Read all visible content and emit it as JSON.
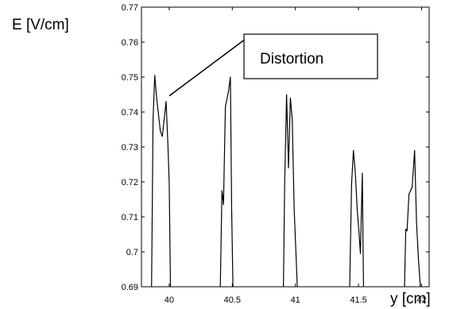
{
  "chart_data": {
    "type": "line",
    "title": "",
    "xlabel": "y [cm]",
    "ylabel": "E [V/cm]",
    "xlim": [
      39.78,
      42.06
    ],
    "ylim": [
      0.69,
      0.77
    ],
    "xticks": [
      40,
      40.5,
      41,
      41.5,
      42
    ],
    "xtick_labels": [
      "40",
      "40.5",
      "41",
      "41.5",
      "42"
    ],
    "yticks": [
      0.69,
      0.7,
      0.71,
      0.72,
      0.73,
      0.74,
      0.75,
      0.76,
      0.77
    ],
    "ytick_labels": [
      "0.69",
      "0.7",
      "0.71",
      "0.72",
      "0.73",
      "0.74",
      "0.75",
      "0.76",
      "0.77"
    ],
    "grid": false,
    "legend": "none",
    "line_color": "#000000",
    "series": [
      {
        "segments": [
          {
            "x": [
              39.86,
              39.872,
              39.885,
              39.9,
              39.93,
              39.945,
              39.975,
              39.99,
              40.0,
              40.01
            ],
            "y": [
              0.69,
              0.738,
              0.7505,
              0.744,
              0.7345,
              0.733,
              0.743,
              0.7305,
              0.72,
              0.69
            ]
          },
          {
            "x": [
              40.405,
              40.418,
              40.43,
              40.445,
              40.47,
              40.485,
              40.495,
              40.505
            ],
            "y": [
              0.69,
              0.7175,
              0.7135,
              0.7415,
              0.746,
              0.75,
              0.712,
              0.69
            ]
          },
          {
            "x": [
              40.905,
              40.915,
              40.93,
              40.945,
              40.96,
              40.975,
              40.99,
              41.005,
              41.015
            ],
            "y": [
              0.69,
              0.7195,
              0.745,
              0.724,
              0.744,
              0.738,
              0.7125,
              0.699,
              0.69
            ]
          },
          {
            "x": [
              41.43,
              41.445,
              41.46,
              41.475,
              41.49,
              41.505,
              41.515,
              41.53,
              41.54
            ],
            "y": [
              0.69,
              0.7195,
              0.729,
              0.7225,
              0.712,
              0.705,
              0.6995,
              0.7225,
              0.69
            ]
          },
          {
            "x": [
              41.865,
              41.875,
              41.885,
              41.9,
              41.925,
              41.945,
              41.96,
              41.975,
              41.99
            ],
            "y": [
              0.69,
              0.7065,
              0.706,
              0.7165,
              0.7185,
              0.729,
              0.7085,
              0.698,
              0.69
            ]
          }
        ]
      }
    ],
    "annotations": [
      {
        "text": "Distortion",
        "arrow_from": [
          40.62,
          0.7613
        ],
        "arrow_to": [
          40.0,
          0.7446
        ]
      }
    ]
  }
}
